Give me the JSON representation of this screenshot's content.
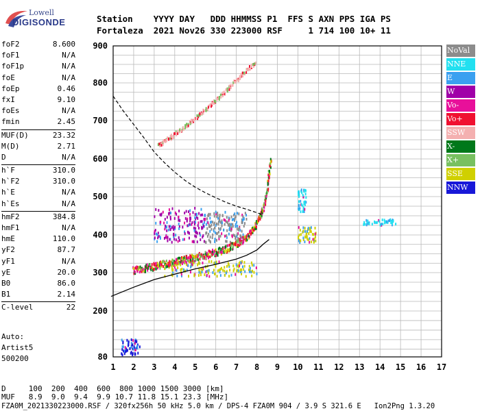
{
  "logo": {
    "line1": "Lowell",
    "line2": "DIGISONDE"
  },
  "header": {
    "line1": "Station    YYYY DAY   DDD HHMMSS P1  FFS S AXN PPS IGA PS",
    "line2": "Fortaleza  2021 Nov26 330 223000 RSF     1 714 100 10+ 11"
  },
  "params": [
    {
      "name": "foF2",
      "value": "8.600"
    },
    {
      "name": "foF1",
      "value": "N/A"
    },
    {
      "name": "foF1p",
      "value": "N/A"
    },
    {
      "name": "foE",
      "value": "N/A"
    },
    {
      "name": "foEp",
      "value": "0.46"
    },
    {
      "name": "fxI",
      "value": "9.10"
    },
    {
      "name": "foEs",
      "value": "N/A"
    },
    {
      "name": "fmin",
      "value": "2.45"
    },
    {
      "sep": true
    },
    {
      "name": "MUF(D)",
      "value": "23.32"
    },
    {
      "name": "M(D)",
      "value": "2.71"
    },
    {
      "name": "D",
      "value": "N/A"
    },
    {
      "sep": true
    },
    {
      "name": "h`F",
      "value": "310.0"
    },
    {
      "name": "h`F2",
      "value": "310.0"
    },
    {
      "name": "h`E",
      "value": "N/A"
    },
    {
      "name": "h`Es",
      "value": "N/A"
    },
    {
      "sep": true
    },
    {
      "name": "hmF2",
      "value": "384.8"
    },
    {
      "name": "hmF1",
      "value": "N/A"
    },
    {
      "name": "hmE",
      "value": "110.0"
    },
    {
      "name": "yF2",
      "value": "87.7"
    },
    {
      "name": "yF1",
      "value": "N/A"
    },
    {
      "name": "yE",
      "value": "20.0"
    },
    {
      "name": "B0",
      "value": "86.0"
    },
    {
      "name": "B1",
      "value": "2.14"
    },
    {
      "sep": true
    },
    {
      "name": "C-level",
      "value": "22"
    }
  ],
  "autoscale": {
    "line1": "Auto:",
    "line2": "Artist5",
    "line3": "500200"
  },
  "legend": [
    {
      "label": "NoVal",
      "color": "#8c8c8c"
    },
    {
      "label": "NNE",
      "color": "#22e0f0"
    },
    {
      "label": "E",
      "color": "#3aa0f0"
    },
    {
      "label": "W",
      "color": "#a000a8"
    },
    {
      "label": "Vo-",
      "color": "#e8109a"
    },
    {
      "label": "Vo+",
      "color": "#f01030"
    },
    {
      "label": "SSW",
      "color": "#f4b0b0"
    },
    {
      "label": "X-",
      "color": "#00781a"
    },
    {
      "label": "X+",
      "color": "#78c060"
    },
    {
      "label": "SSE",
      "color": "#d0d000"
    },
    {
      "label": "NNW",
      "color": "#1818d8"
    }
  ],
  "footer": {
    "d_row": "D     100  200  400  600  800 1000 1500 3000 [km]",
    "muf_row": "MUF   8.9  9.0  9.4  9.9 10.7 11.8 15.1 23.3 [MHz]",
    "file_row": "FZA0M_2021330223000.RSF / 320fx256h 50 kHz 5.0 km / DPS-4 FZA0M 904 / 3.9 S 321.6 E   Ion2Png 1.3.20"
  },
  "chart_data": {
    "type": "scatter",
    "xlim": [
      1,
      17
    ],
    "ylim": [
      80,
      900
    ],
    "xticks": [
      1,
      2,
      3,
      4,
      5,
      6,
      7,
      8,
      9,
      10,
      11,
      12,
      13,
      14,
      15,
      16,
      17
    ],
    "yticks": [
      80,
      200,
      300,
      400,
      500,
      600,
      700,
      800,
      900
    ],
    "grid": true,
    "legend_position": "right",
    "profile_line": [
      [
        0.9,
        238
      ],
      [
        2,
        262
      ],
      [
        3,
        282
      ],
      [
        4,
        296
      ],
      [
        5,
        310
      ],
      [
        6,
        322
      ],
      [
        7,
        336
      ],
      [
        7.5,
        346
      ],
      [
        8,
        360
      ],
      [
        8.3,
        375
      ],
      [
        8.6,
        388
      ]
    ],
    "dashed_line": [
      [
        1,
        765
      ],
      [
        1.5,
        725
      ],
      [
        2,
        690
      ],
      [
        2.5,
        655
      ],
      [
        3,
        618
      ],
      [
        3.5,
        590
      ],
      [
        4,
        565
      ],
      [
        4.5,
        543
      ],
      [
        5,
        525
      ],
      [
        5.5,
        510
      ],
      [
        6,
        497
      ],
      [
        6.5,
        485
      ],
      [
        7,
        475
      ],
      [
        7.5,
        467
      ],
      [
        8,
        458
      ],
      [
        8.3,
        452
      ]
    ],
    "trace_F2": [
      [
        2.0,
        305
      ],
      [
        2.5,
        310
      ],
      [
        3.0,
        316
      ],
      [
        3.5,
        322
      ],
      [
        4.0,
        328
      ],
      [
        4.5,
        334
      ],
      [
        5.0,
        340
      ],
      [
        5.5,
        346
      ],
      [
        6.0,
        353
      ],
      [
        6.5,
        362
      ],
      [
        7.0,
        374
      ],
      [
        7.5,
        392
      ],
      [
        7.8,
        410
      ],
      [
        8.0,
        428
      ],
      [
        8.2,
        450
      ],
      [
        8.35,
        475
      ],
      [
        8.5,
        510
      ],
      [
        8.6,
        560
      ],
      [
        8.7,
        605
      ]
    ],
    "trace_F2_2hop": [
      [
        3.2,
        635
      ],
      [
        3.6,
        648
      ],
      [
        4.0,
        662
      ],
      [
        4.5,
        684
      ],
      [
        5.0,
        705
      ],
      [
        5.5,
        728
      ],
      [
        6.0,
        752
      ],
      [
        6.5,
        778
      ],
      [
        7.0,
        805
      ],
      [
        7.5,
        832
      ],
      [
        8.0,
        856
      ]
    ],
    "clusters": [
      {
        "xrange": [
          3.0,
          5.5
        ],
        "yrange": [
          380,
          470
        ],
        "color": "W"
      },
      {
        "xrange": [
          5.5,
          7.5
        ],
        "yrange": [
          380,
          460
        ],
        "color": "NoVal"
      },
      {
        "xrange": [
          3.5,
          8.0
        ],
        "yrange": [
          290,
          330
        ],
        "color": "SSE"
      },
      {
        "xrange": [
          10.0,
          10.4
        ],
        "yrange": [
          460,
          520
        ],
        "color": "NNE"
      },
      {
        "xrange": [
          10.0,
          10.9
        ],
        "yrange": [
          380,
          420
        ],
        "color": "SSE"
      },
      {
        "xrange": [
          13.2,
          14.8
        ],
        "yrange": [
          425,
          440
        ],
        "color": "NNE"
      },
      {
        "xrange": [
          1.4,
          2.3
        ],
        "yrange": [
          85,
          125
        ],
        "color": "NNW"
      }
    ]
  }
}
